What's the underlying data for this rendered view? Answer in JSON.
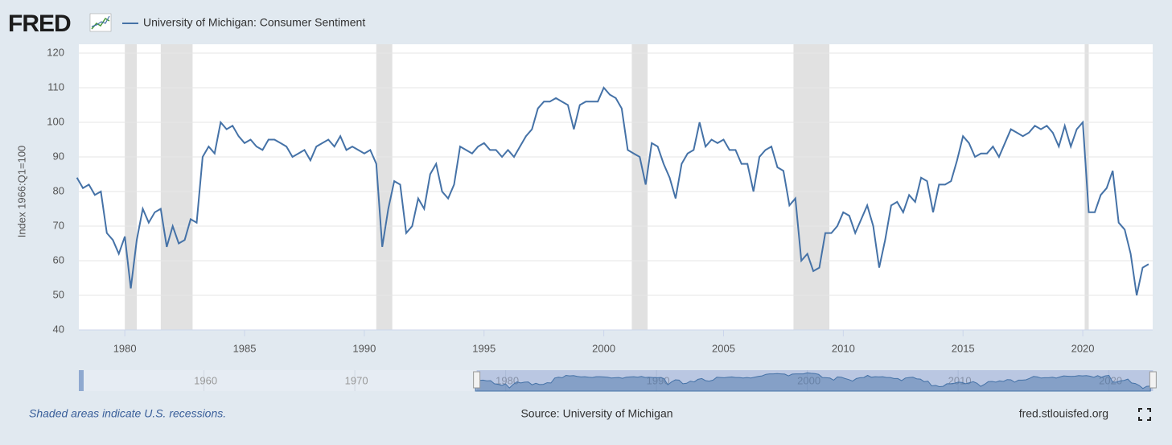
{
  "chart_data": {
    "type": "line",
    "logo": "FRED",
    "y_label": "Index 1966:Q1=100",
    "note": "Shaded areas indicate U.S. recessions.",
    "source": "Source: University of Michigan",
    "site": "fred.stlouisfed.org",
    "x": [
      1978,
      1978.25,
      1978.5,
      1978.75,
      1979,
      1979.25,
      1979.5,
      1979.75,
      1980,
      1980.25,
      1980.5,
      1980.75,
      1981,
      1981.25,
      1981.5,
      1981.75,
      1982,
      1982.25,
      1982.5,
      1982.75,
      1983,
      1983.25,
      1983.5,
      1983.75,
      1984,
      1984.25,
      1984.5,
      1984.75,
      1985,
      1985.25,
      1985.5,
      1985.75,
      1986,
      1986.25,
      1986.5,
      1986.75,
      1987,
      1987.25,
      1987.5,
      1987.75,
      1988,
      1988.25,
      1988.5,
      1988.75,
      1989,
      1989.25,
      1989.5,
      1989.75,
      1990,
      1990.25,
      1990.5,
      1990.75,
      1991,
      1991.25,
      1991.5,
      1991.75,
      1992,
      1992.25,
      1992.5,
      1992.75,
      1993,
      1993.25,
      1993.5,
      1993.75,
      1994,
      1994.25,
      1994.5,
      1994.75,
      1995,
      1995.25,
      1995.5,
      1995.75,
      1996,
      1996.25,
      1996.5,
      1996.75,
      1997,
      1997.25,
      1997.5,
      1997.75,
      1998,
      1998.25,
      1998.5,
      1998.75,
      1999,
      1999.25,
      1999.5,
      1999.75,
      2000,
      2000.25,
      2000.5,
      2000.75,
      2001,
      2001.25,
      2001.5,
      2001.75,
      2002,
      2002.25,
      2002.5,
      2002.75,
      2003,
      2003.25,
      2003.5,
      2003.75,
      2004,
      2004.25,
      2004.5,
      2004.75,
      2005,
      2005.25,
      2005.5,
      2005.75,
      2006,
      2006.25,
      2006.5,
      2006.75,
      2007,
      2007.25,
      2007.5,
      2007.75,
      2008,
      2008.25,
      2008.5,
      2008.75,
      2009,
      2009.25,
      2009.5,
      2009.75,
      2010,
      2010.25,
      2010.5,
      2010.75,
      2011,
      2011.25,
      2011.5,
      2011.75,
      2012,
      2012.25,
      2012.5,
      2012.75,
      2013,
      2013.25,
      2013.5,
      2013.75,
      2014,
      2014.25,
      2014.5,
      2014.75,
      2015,
      2015.25,
      2015.5,
      2015.75,
      2016,
      2016.25,
      2016.5,
      2016.75,
      2017,
      2017.25,
      2017.5,
      2017.75,
      2018,
      2018.25,
      2018.5,
      2018.75,
      2019,
      2019.25,
      2019.5,
      2019.75,
      2020,
      2020.25,
      2020.5,
      2020.75,
      2021,
      2021.25,
      2021.5,
      2021.75,
      2022,
      2022.25,
      2022.5,
      2022.75
    ],
    "series": [
      {
        "name": "University of Michigan: Consumer Sentiment",
        "color": "#4572a7",
        "values": [
          84,
          81,
          82,
          79,
          80,
          68,
          66,
          62,
          67,
          52,
          66,
          75,
          71,
          74,
          75,
          64,
          70,
          65,
          66,
          72,
          71,
          90,
          93,
          91,
          100,
          98,
          99,
          96,
          94,
          95,
          93,
          92,
          95,
          95,
          94,
          93,
          90,
          91,
          92,
          89,
          93,
          94,
          95,
          93,
          96,
          92,
          93,
          92,
          91,
          92,
          88,
          64,
          75,
          83,
          82,
          68,
          70,
          78,
          75,
          85,
          88,
          80,
          78,
          82,
          93,
          92,
          91,
          93,
          94,
          92,
          92,
          90,
          92,
          90,
          93,
          96,
          98,
          104,
          106,
          106,
          107,
          106,
          105,
          98,
          105,
          106,
          106,
          106,
          110,
          108,
          107,
          104,
          92,
          91,
          90,
          82,
          94,
          93,
          88,
          84,
          78,
          88,
          91,
          92,
          100,
          93,
          95,
          94,
          95,
          92,
          92,
          88,
          88,
          80,
          90,
          92,
          93,
          87,
          86,
          76,
          78,
          60,
          62,
          57,
          58,
          68,
          68,
          70,
          74,
          73,
          68,
          72,
          76,
          70,
          58,
          66,
          76,
          77,
          74,
          79,
          77,
          84,
          83,
          74,
          82,
          82,
          83,
          89,
          96,
          94,
          90,
          91,
          91,
          93,
          90,
          94,
          98,
          97,
          96,
          97,
          99,
          98,
          99,
          97,
          93,
          99,
          93,
          98,
          100,
          74,
          74,
          79,
          81,
          86,
          71,
          69,
          62,
          50,
          58,
          59
        ]
      }
    ],
    "recessions": [
      [
        1980,
        1980.5
      ],
      [
        1981.5,
        1982.83
      ],
      [
        1990.5,
        1991.17
      ],
      [
        2001.17,
        2001.83
      ],
      [
        2007.92,
        2009.42
      ],
      [
        2020.08,
        2020.25
      ]
    ],
    "xlim": [
      1978.08,
      2022.92
    ],
    "xticks": [
      1980,
      1985,
      1990,
      1995,
      2000,
      2005,
      2010,
      2015,
      2020
    ],
    "ylim": [
      40,
      120
    ],
    "yticks": [
      40,
      50,
      60,
      70,
      80,
      90,
      100,
      110,
      120
    ],
    "grid": true,
    "navigator": {
      "xlim": [
        1951.7,
        2022.9
      ],
      "xticks": [
        1960,
        1970,
        1980,
        1990,
        2000,
        2010,
        2020
      ]
    }
  }
}
